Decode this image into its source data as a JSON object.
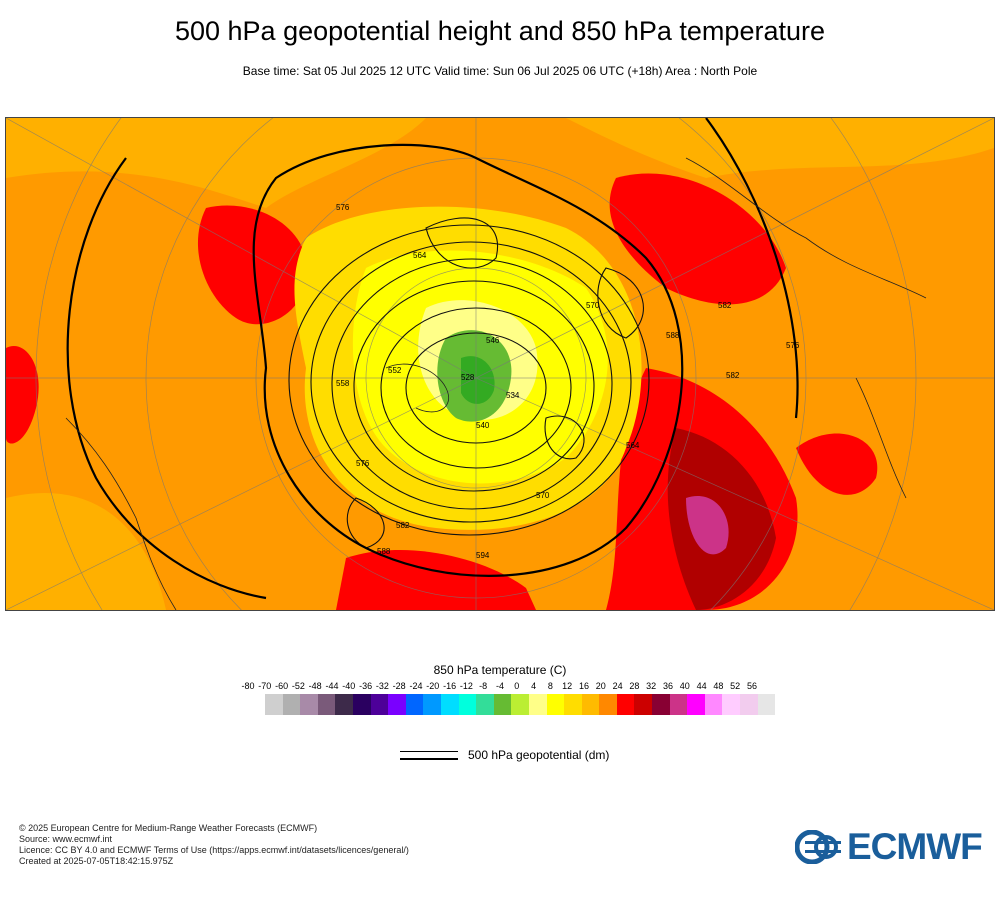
{
  "header": {
    "title": "500 hPa geopotential height and 850 hPa temperature",
    "subtitle": "Base time: Sat 05 Jul 2025 12 UTC Valid time: Sun 06 Jul 2025 06 UTC (+18h) Area : North Pole"
  },
  "legend": {
    "title": "850 hPa temperature (C)",
    "labels": [
      "-80",
      "-70",
      "-60",
      "-52",
      "-48",
      "-44",
      "-40",
      "-36",
      "-32",
      "-28",
      "-24",
      "-20",
      "-16",
      "-12",
      "-8",
      "-4",
      "0",
      "4",
      "8",
      "12",
      "16",
      "20",
      "24",
      "28",
      "32",
      "36",
      "40",
      "44",
      "48",
      "52",
      "56"
    ],
    "colors": [
      "#e8e8e8",
      "#cfcfcf",
      "#b0b0b0",
      "#a88aa8",
      "#7a5a7a",
      "#3d2a4a",
      "#2a0060",
      "#4d0099",
      "#7a00ff",
      "#0066ff",
      "#0099ff",
      "#00ddff",
      "#00ffdd",
      "#33dd99",
      "#66bb33",
      "#bbee33",
      "#ffff88",
      "#ffff00",
      "#ffdd00",
      "#ffbb00",
      "#ff8800",
      "#ff0000",
      "#cc0000",
      "#880033",
      "#cc3388",
      "#ff00ff",
      "#ff88ff",
      "#ffccff",
      "#f2ccee",
      "#e6e6e6"
    ],
    "contour_label": "500 hPa geopotential (dm)"
  },
  "map": {
    "contour_labels": [
      "576",
      "582",
      "588",
      "564",
      "570",
      "552",
      "546",
      "540",
      "534",
      "528",
      "582",
      "576",
      "570",
      "564",
      "558",
      "582",
      "594",
      "588",
      "576"
    ]
  },
  "footer": {
    "lines": [
      "© 2025 European Centre for Medium-Range Weather Forecasts (ECMWF)",
      "Source: www.ecmwf.int",
      "Licence: CC BY 4.0 and ECMWF Terms of Use (https://apps.ecmwf.int/datasets/licences/general/)",
      "Created at 2025-07-05T18:42:15.975Z"
    ]
  },
  "logo": {
    "text": "ECMWF",
    "color": "#1a5e9b"
  }
}
